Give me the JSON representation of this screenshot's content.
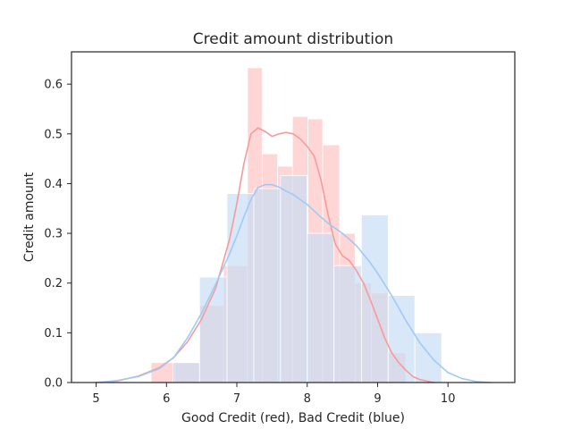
{
  "chart_data": {
    "type": "histogram",
    "title": "Credit amount distribution",
    "xlabel": "Good Credit (red), Bad Credit (blue)",
    "ylabel": "Credit amount",
    "xlim": [
      4.65,
      10.95
    ],
    "ylim": [
      0.0,
      0.665
    ],
    "xticks": [
      5,
      6,
      7,
      8,
      9,
      10
    ],
    "yticks": [
      0.0,
      0.1,
      0.2,
      0.3,
      0.4,
      0.5,
      0.6
    ],
    "grid": false,
    "legend": "none",
    "series": [
      {
        "color": "#f79a9a",
        "bin_fill": "#ffc8c8",
        "bin_alpha": 0.75,
        "bins": [
          {
            "x0": 5.78,
            "x1": 6.12,
            "value": 0.04
          },
          {
            "x0": 6.12,
            "x1": 6.47,
            "value": 0.04
          },
          {
            "x0": 6.47,
            "x1": 6.81,
            "value": 0.155
          },
          {
            "x0": 6.81,
            "x1": 7.15,
            "value": 0.235
          },
          {
            "x0": 7.15,
            "x1": 7.36,
            "value": 0.633
          },
          {
            "x0": 7.36,
            "x1": 7.58,
            "value": 0.46
          },
          {
            "x0": 7.58,
            "x1": 7.79,
            "value": 0.435
          },
          {
            "x0": 7.79,
            "x1": 8.01,
            "value": 0.535
          },
          {
            "x0": 8.01,
            "x1": 8.22,
            "value": 0.53
          },
          {
            "x0": 8.22,
            "x1": 8.46,
            "value": 0.478
          },
          {
            "x0": 8.46,
            "x1": 8.68,
            "value": 0.3
          },
          {
            "x0": 8.68,
            "x1": 8.91,
            "value": 0.2
          },
          {
            "x0": 8.91,
            "x1": 9.15,
            "value": 0.18
          },
          {
            "x0": 9.15,
            "x1": 9.4,
            "value": 0.06
          }
        ],
        "kde": {
          "x": [
            5.0,
            5.3,
            5.6,
            5.9,
            6.1,
            6.3,
            6.5,
            6.7,
            6.9,
            7.0,
            7.1,
            7.2,
            7.3,
            7.4,
            7.5,
            7.6,
            7.7,
            7.8,
            7.9,
            8.0,
            8.1,
            8.2,
            8.3,
            8.4,
            8.5,
            8.6,
            8.7,
            8.8,
            8.9,
            9.0,
            9.1,
            9.2,
            9.3,
            9.4,
            9.5,
            9.6,
            9.8
          ],
          "y": [
            0.0,
            0.003,
            0.013,
            0.03,
            0.05,
            0.082,
            0.128,
            0.19,
            0.29,
            0.36,
            0.44,
            0.5,
            0.512,
            0.505,
            0.495,
            0.5,
            0.503,
            0.5,
            0.49,
            0.475,
            0.455,
            0.405,
            0.335,
            0.278,
            0.255,
            0.245,
            0.225,
            0.2,
            0.165,
            0.128,
            0.09,
            0.06,
            0.04,
            0.025,
            0.012,
            0.006,
            0.0
          ]
        }
      },
      {
        "color": "#a1c9f4",
        "bin_fill": "#c5dcf5",
        "bin_alpha": 0.65,
        "bins": [
          {
            "x0": 6.09,
            "x1": 6.47,
            "value": 0.04
          },
          {
            "x0": 6.47,
            "x1": 6.86,
            "value": 0.212
          },
          {
            "x0": 6.86,
            "x1": 7.24,
            "value": 0.38
          },
          {
            "x0": 7.24,
            "x1": 7.62,
            "value": 0.39
          },
          {
            "x0": 7.62,
            "x1": 8.0,
            "value": 0.416
          },
          {
            "x0": 8.0,
            "x1": 8.38,
            "value": 0.3
          },
          {
            "x0": 8.38,
            "x1": 8.77,
            "value": 0.235
          },
          {
            "x0": 8.77,
            "x1": 9.15,
            "value": 0.337
          },
          {
            "x0": 9.15,
            "x1": 9.53,
            "value": 0.175
          },
          {
            "x0": 9.53,
            "x1": 9.91,
            "value": 0.1
          }
        ],
        "kde": {
          "x": [
            5.0,
            5.3,
            5.6,
            5.9,
            6.1,
            6.3,
            6.5,
            6.7,
            6.9,
            7.0,
            7.1,
            7.2,
            7.3,
            7.4,
            7.5,
            7.6,
            7.7,
            7.8,
            7.9,
            8.0,
            8.1,
            8.2,
            8.3,
            8.4,
            8.5,
            8.6,
            8.7,
            8.8,
            8.9,
            9.0,
            9.2,
            9.4,
            9.6,
            9.8,
            10.0,
            10.2,
            10.4,
            10.6
          ],
          "y": [
            0.0,
            0.004,
            0.012,
            0.028,
            0.05,
            0.09,
            0.14,
            0.198,
            0.26,
            0.295,
            0.333,
            0.368,
            0.392,
            0.398,
            0.398,
            0.393,
            0.385,
            0.378,
            0.368,
            0.358,
            0.345,
            0.332,
            0.32,
            0.31,
            0.3,
            0.288,
            0.275,
            0.258,
            0.24,
            0.22,
            0.175,
            0.125,
            0.08,
            0.045,
            0.02,
            0.008,
            0.002,
            0.0
          ]
        }
      }
    ]
  }
}
